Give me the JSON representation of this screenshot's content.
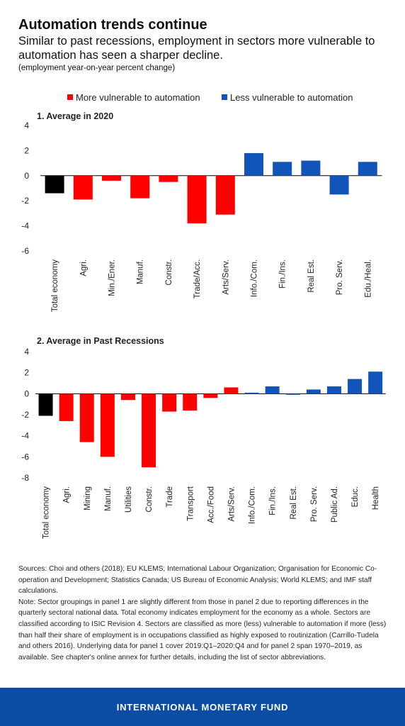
{
  "header": {
    "title": "Automation trends continue",
    "subtitle": "Similar to past recessions, employment in sectors more vulnerable to automation has seen a sharper decline.",
    "units": "(employment year-on-year percent change)"
  },
  "legend": [
    {
      "label": "More vulnerable to automation",
      "color": "#ff0000"
    },
    {
      "label": "Less vulnerable to automation",
      "color": "#1155bb"
    }
  ],
  "chart_data": [
    {
      "type": "bar",
      "title": "1. Average in 2020",
      "ylim": [
        -6,
        4
      ],
      "yticks": [
        4,
        2,
        0,
        -2,
        -4,
        -6
      ],
      "categories": [
        "Total economy",
        "Agri.",
        "Min./Ener.",
        "Manuf.",
        "Constr.",
        "Trade/Acc.",
        "Arts/Serv.",
        "Info./Com.",
        "Fin./Ins.",
        "Real Est.",
        "Pro. Serv.",
        "Edu./Heal."
      ],
      "values": [
        -1.4,
        -1.9,
        -0.4,
        -1.8,
        -0.5,
        -3.8,
        -3.1,
        1.8,
        1.1,
        1.2,
        -1.5,
        1.1
      ],
      "groups": [
        "total",
        "more",
        "more",
        "more",
        "more",
        "more",
        "more",
        "less",
        "less",
        "less",
        "less",
        "less"
      ]
    },
    {
      "type": "bar",
      "title": "2. Average in Past Recessions",
      "ylim": [
        -8,
        4
      ],
      "yticks": [
        4,
        2,
        0,
        -2,
        -4,
        -6,
        -8
      ],
      "categories": [
        "Total economy",
        "Agri.",
        "Mining",
        "Manuf.",
        "Utilities",
        "Constr.",
        "Trade",
        "Transport",
        "Acc./Food",
        "Arts/Serv.",
        "Info./Com.",
        "Fin./Ins.",
        "Real Est.",
        "Pro. Serv.",
        "Public Ad.",
        "Educ.",
        "Health"
      ],
      "values": [
        -2.1,
        -2.6,
        -4.6,
        -6.0,
        -0.6,
        -7.0,
        -1.7,
        -1.6,
        -0.4,
        0.6,
        0.1,
        0.7,
        -0.1,
        0.4,
        0.7,
        1.4,
        2.1
      ],
      "groups": [
        "total",
        "more",
        "more",
        "more",
        "more",
        "more",
        "more",
        "more",
        "more",
        "more",
        "less",
        "less",
        "less",
        "less",
        "less",
        "less",
        "less"
      ]
    }
  ],
  "colors": {
    "total": "#000000",
    "more": "#ff0000",
    "less": "#1155bb"
  },
  "notes": {
    "sources": "Sources: Choi and others (2018); EU KLEMS; International Labour Organization; Organisation for Economic Co-operation and Development; Statistics Canada; US Bureau of Economic Analysis; World KLEMS; and IMF staff calculations.",
    "note": "Note: Sector groupings in panel 1 are slightly different from those in panel 2 due to reporting differences in the quarterly sectoral national data. Total economy indicates employment for the economy as a whole. Sectors are classified according to ISIC Revision 4. Sectors are classified as more (less) vulnerable to automation if more (less) than half their share of employment is in occupations classified as highly exposed to routinization (Carrillo-Tudela and others 2016). Underlying data for panel 1 cover 2019:Q1–2020:Q4 and for panel 2 span 1970–2019, as available. See chapter's online annex for further details, including the list of sector abbreviations."
  },
  "footer": {
    "label": "INTERNATIONAL MONETARY FUND"
  }
}
